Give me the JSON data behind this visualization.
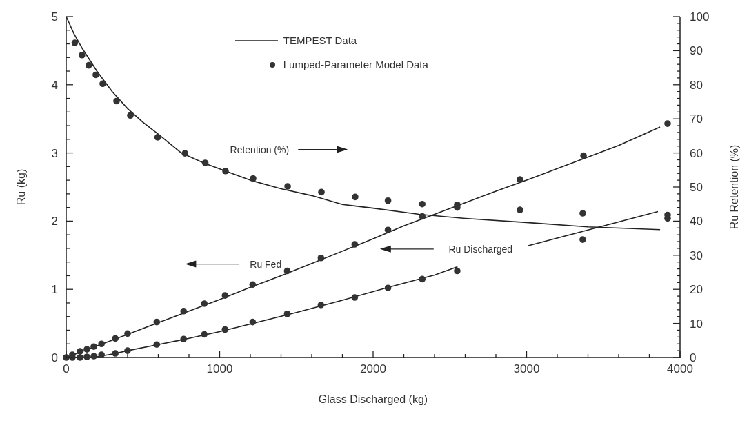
{
  "chart_data": {
    "type": "line",
    "xlabel": "Glass Discharged (kg)",
    "ylabel": "Ru (kg)",
    "y2label": "Ru Retention (%)",
    "xlim": [
      0,
      4000
    ],
    "xticks": [
      0,
      {
        "value": 200,
        "label": null
      },
      {
        "value": 400,
        "label": null
      },
      {
        "value": 600,
        "label": null
      },
      {
        "value": 800,
        "label": null
      },
      1000,
      {
        "value": 1200,
        "label": null
      },
      {
        "value": 1400,
        "label": null
      },
      {
        "value": 1600,
        "label": null
      },
      {
        "value": 1800,
        "label": null
      },
      2000,
      {
        "value": 2200,
        "label": null
      },
      {
        "value": 2400,
        "label": null
      },
      {
        "value": 2600,
        "label": null
      },
      {
        "value": 2800,
        "label": null
      },
      3000,
      {
        "value": 3200,
        "label": null
      },
      {
        "value": 3400,
        "label": null
      },
      {
        "value": 3600,
        "label": null
      },
      {
        "value": 3800,
        "label": null
      },
      4000
    ],
    "ylim": [
      0,
      5
    ],
    "yticks": [
      0,
      {
        "value": 0.2,
        "label": null
      },
      {
        "value": 0.4,
        "label": null
      },
      {
        "value": 0.6,
        "label": null
      },
      {
        "value": 0.8,
        "label": null
      },
      1,
      {
        "value": 1.2,
        "label": null
      },
      {
        "value": 1.4,
        "label": null
      },
      {
        "value": 1.6,
        "label": null
      },
      {
        "value": 1.8,
        "label": null
      },
      2,
      {
        "value": 2.2,
        "label": null
      },
      {
        "value": 2.4,
        "label": null
      },
      {
        "value": 2.6,
        "label": null
      },
      {
        "value": 2.8,
        "label": null
      },
      3,
      {
        "value": 3.2,
        "label": null
      },
      {
        "value": 3.4,
        "label": null
      },
      {
        "value": 3.6,
        "label": null
      },
      {
        "value": 3.8,
        "label": null
      },
      4,
      {
        "value": 4.2,
        "label": null
      },
      {
        "value": 4.4,
        "label": null
      },
      {
        "value": 4.6,
        "label": null
      },
      {
        "value": 4.8,
        "label": null
      },
      5
    ],
    "y2lim": [
      0,
      100
    ],
    "y2ticks": [
      0,
      {
        "value": 2,
        "label": null
      },
      {
        "value": 4,
        "label": null
      },
      {
        "value": 6,
        "label": null
      },
      {
        "value": 8,
        "label": null
      },
      10,
      {
        "value": 12,
        "label": null
      },
      {
        "value": 14,
        "label": null
      },
      {
        "value": 16,
        "label": null
      },
      {
        "value": 18,
        "label": null
      },
      20,
      {
        "value": 22,
        "label": null
      },
      {
        "value": 24,
        "label": null
      },
      {
        "value": 26,
        "label": null
      },
      {
        "value": 28,
        "label": null
      },
      30,
      {
        "value": 32,
        "label": null
      },
      {
        "value": 34,
        "label": null
      },
      {
        "value": 36,
        "label": null
      },
      {
        "value": 38,
        "label": null
      },
      40,
      {
        "value": 42,
        "label": null
      },
      {
        "value": 44,
        "label": null
      },
      {
        "value": 46,
        "label": null
      },
      {
        "value": 48,
        "label": null
      },
      50,
      {
        "value": 52,
        "label": null
      },
      {
        "value": 54,
        "label": null
      },
      {
        "value": 56,
        "label": null
      },
      {
        "value": 58,
        "label": null
      },
      60,
      {
        "value": 62,
        "label": null
      },
      {
        "value": 64,
        "label": null
      },
      {
        "value": 66,
        "label": null
      },
      {
        "value": 68,
        "label": null
      },
      70,
      {
        "value": 72,
        "label": null
      },
      {
        "value": 74,
        "label": null
      },
      {
        "value": 76,
        "label": null
      },
      {
        "value": 78,
        "label": null
      },
      80,
      {
        "value": 82,
        "label": null
      },
      {
        "value": 84,
        "label": null
      },
      {
        "value": 86,
        "label": null
      },
      {
        "value": 88,
        "label": null
      },
      90,
      {
        "value": 92,
        "label": null
      },
      {
        "value": 94,
        "label": null
      },
      {
        "value": 96,
        "label": null
      },
      {
        "value": 98,
        "label": null
      },
      100
    ],
    "grid": false,
    "legend": "top",
    "annotations": [
      "Retention (%)",
      "Ru Fed",
      "Ru Discharged"
    ],
    "series": [
      {
        "name": "TEMPEST Data",
        "color": "#222222",
        "axis": "y2",
        "x": [
          0,
          50,
          100,
          200,
          300,
          400,
          500,
          600,
          750,
          900,
          1050,
          1200,
          1400,
          1600,
          1800,
          2000,
          2300,
          2600,
          3000,
          3400,
          3870
        ],
        "values": [
          100,
          95,
          91,
          84,
          78,
          73,
          69,
          65.5,
          60,
          57,
          54.5,
          52,
          49.5,
          47.5,
          44.9,
          43.8,
          42,
          40.8,
          39.6,
          38.3,
          37.5
        ]
      },
      {
        "color": "#222222",
        "x": [
          0,
          200,
          400,
          600,
          800,
          1000,
          1200,
          1400,
          1600,
          1800,
          2000,
          2200,
          2400,
          2600,
          2800,
          3000,
          3200,
          3400,
          3600,
          3870
        ],
        "values": [
          0,
          0.17,
          0.34,
          0.51,
          0.68,
          0.85,
          1.03,
          1.2,
          1.38,
          1.56,
          1.74,
          1.93,
          2.1,
          2.27,
          2.44,
          2.6,
          2.77,
          2.94,
          3.11,
          3.38
        ]
      },
      {
        "color": "#222222",
        "x": [
          0,
          200,
          300,
          400,
          600,
          800,
          1000,
          1200,
          1500,
          1800,
          2100,
          2400,
          2550,
          2780,
          3011,
          3400,
          3856
        ],
        "values": [
          0,
          0.01,
          0.05,
          0.1,
          0.19,
          0.28,
          0.38,
          0.49,
          0.66,
          0.84,
          1.03,
          1.21,
          1.33,
          null,
          1.64,
          1.87,
          2.14
        ]
      },
      {
        "type": "scatter",
        "name": "Lumped-Parameter Model Data",
        "color": "#333333",
        "marker": "circle",
        "axis": "y2",
        "x": [
          56,
          103,
          147,
          193,
          238,
          328,
          418,
          596,
          774,
          906,
          1038,
          1218,
          1443,
          1663,
          1883,
          2097,
          2320,
          2548,
          2957,
          3366,
          3919
        ],
        "values": [
          92.3,
          88.7,
          85.7,
          82.9,
          80.3,
          75.2,
          71,
          64.6,
          59.9,
          57.1,
          54.7,
          52.5,
          50.2,
          48.5,
          47.1,
          46,
          45,
          44,
          43.3,
          42.3,
          41.8
        ]
      },
      {
        "type": "scatter",
        "color": "#333333",
        "marker": "circle",
        "x": [
          0,
          40,
          90,
          135,
          180,
          230,
          320,
          400,
          590,
          765,
          900,
          1035,
          1215,
          1440,
          1660,
          1880,
          2097,
          2320,
          2548,
          2957,
          3371,
          3919
        ],
        "values": [
          0,
          0.04,
          0.09,
          0.12,
          0.16,
          0.2,
          0.28,
          0.35,
          0.52,
          0.68,
          0.79,
          0.91,
          1.07,
          1.27,
          1.46,
          1.66,
          1.87,
          2.07,
          2.24,
          2.61,
          2.96,
          3.43
        ]
      },
      {
        "type": "scatter",
        "color": "#333333",
        "marker": "circle",
        "x": [
          40,
          90,
          135,
          180,
          230,
          320,
          400,
          590,
          765,
          900,
          1035,
          1215,
          1440,
          1660,
          1880,
          2097,
          2320,
          2548,
          3366,
          3919
        ],
        "values": [
          0,
          0,
          0.01,
          0.02,
          0.04,
          0.06,
          0.1,
          0.19,
          0.27,
          0.34,
          0.41,
          0.52,
          0.64,
          0.77,
          0.88,
          1.02,
          1.15,
          1.27,
          1.73,
          2.04
        ]
      }
    ]
  }
}
